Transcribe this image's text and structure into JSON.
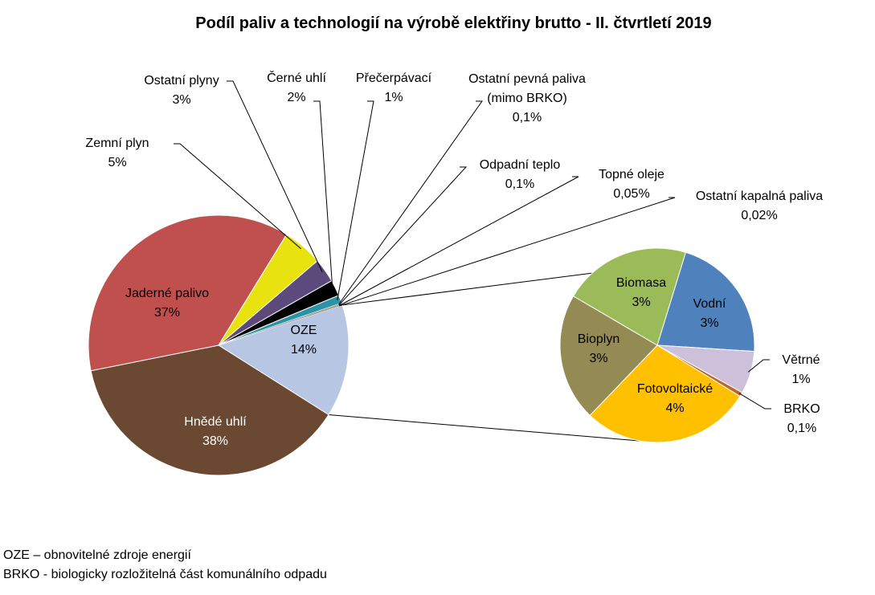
{
  "chart_data": [
    {
      "type": "pie",
      "title": "Podíl paliv a technologií na výrobě elektřiny brutto - II. čtvrtletí 2019",
      "slices": [
        {
          "name": "OZE",
          "value_text": "14%",
          "value": 14.0,
          "color": "#b7c6e2"
        },
        {
          "name": "Hnědé uhlí",
          "value_text": "38%",
          "value": 38.0,
          "color": "#6b4831"
        },
        {
          "name": "Jaderné palivo",
          "value_text": "37%",
          "value": 37.0,
          "color": "#c0504d"
        },
        {
          "name": "Zemní plyn",
          "value_text": "5%",
          "value": 5.0,
          "color": "#e8e20f"
        },
        {
          "name": "Ostatní plyny",
          "value_text": "3%",
          "value": 3.0,
          "color": "#5d4a7c"
        },
        {
          "name": "Černé uhlí",
          "value_text": "2%",
          "value": 2.0,
          "color": "#000000"
        },
        {
          "name": "Přečerpávací",
          "value_text": "1%",
          "value": 1.0,
          "color": "#2a93a6"
        },
        {
          "name": "Ostatní pevná paliva (mimo BRKO)",
          "value_text": "0,1%",
          "value": 0.1,
          "color": "#8b9fc4"
        },
        {
          "name": "Odpadní teplo",
          "value_text": "0,1%",
          "value": 0.1,
          "color": "#c4a06a"
        },
        {
          "name": "Topné oleje",
          "value_text": "0,05%",
          "value": 0.05,
          "color": "#7f7f7f"
        },
        {
          "name": "Ostatní kapalná paliva",
          "value_text": "0,02%",
          "value": 0.02,
          "color": "#4f6228"
        }
      ]
    },
    {
      "type": "pie",
      "title": "",
      "slices": [
        {
          "name": "Vodní",
          "value_text": "3%",
          "value": 3.0,
          "color": "#4f81bd"
        },
        {
          "name": "Větrné",
          "value_text": "1%",
          "value": 1.0,
          "color": "#ccc0da"
        },
        {
          "name": "BRKO",
          "value_text": "0,1%",
          "value": 0.1,
          "color": "#c0652b"
        },
        {
          "name": "Fotovoltaické",
          "value_text": "4%",
          "value": 4.0,
          "color": "#ffc000"
        },
        {
          "name": "Bioplyn",
          "value_text": "3%",
          "value": 3.0,
          "color": "#948a54"
        },
        {
          "name": "Biomasa",
          "value_text": "3%",
          "value": 3.0,
          "color": "#9bbb59"
        }
      ]
    }
  ],
  "notes": [
    "OZE – obnovitelné zdroje energií",
    "BRKO - biologicky rozložitelná část komunálního odpadu"
  ]
}
